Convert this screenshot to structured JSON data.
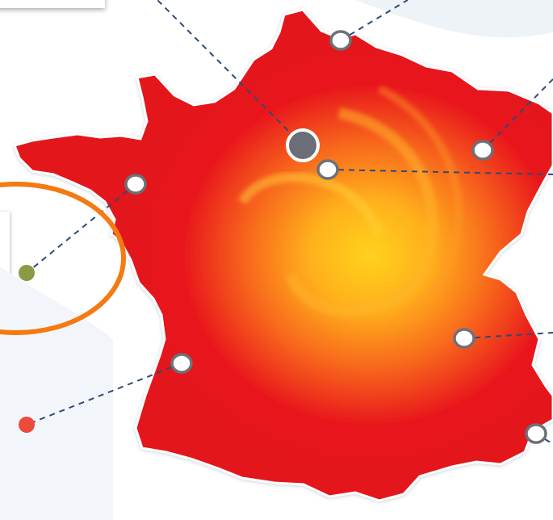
{
  "map": {
    "region": "France",
    "colors": {
      "land": "#e8141b",
      "center_glow": "#ffc21a",
      "connector": "#2f4a77",
      "marker_fill": "#ffffff",
      "marker_stroke": "#6e7078",
      "capital_marker": "#6b6e78",
      "highlight_ring": "#f47a12",
      "legend_dot_green": "#8b9a44",
      "legend_dot_red": "#ea4b3d",
      "background": "#ffffff"
    },
    "markers": [
      {
        "id": "lille",
        "kind": "city"
      },
      {
        "id": "paris-capital",
        "kind": "capital"
      },
      {
        "id": "paris-south",
        "kind": "city"
      },
      {
        "id": "strasbourg",
        "kind": "city"
      },
      {
        "id": "brittany",
        "kind": "city"
      },
      {
        "id": "bordeaux",
        "kind": "city"
      },
      {
        "id": "lyon",
        "kind": "city"
      },
      {
        "id": "marseille",
        "kind": "city"
      }
    ],
    "legend_dots": [
      {
        "id": "green-dot",
        "color": "#8b9a44"
      },
      {
        "id": "red-dot",
        "color": "#ea4b3d"
      }
    ],
    "highlight": {
      "shape": "ellipse",
      "color": "#f47a12"
    }
  }
}
